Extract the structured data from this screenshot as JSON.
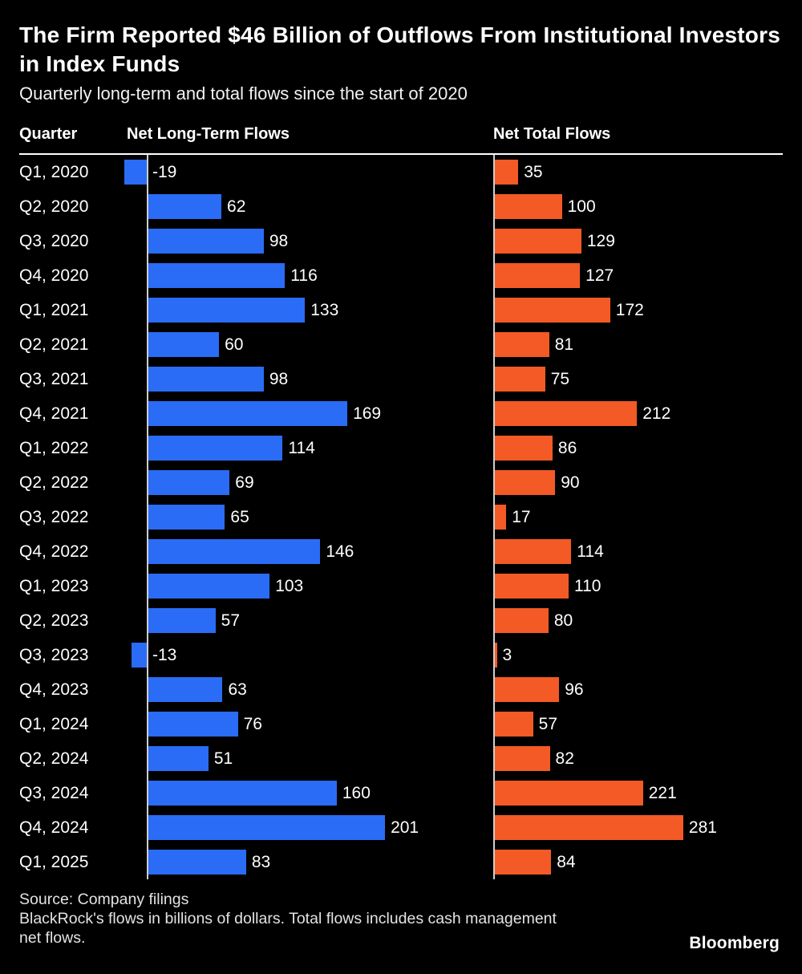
{
  "title": "The Firm Reported $46 Billion of Outflows From Institutional Investors in Index Funds",
  "subtitle": "Quarterly long-term and total flows since the start of 2020",
  "columns": {
    "quarter": "Quarter",
    "long_term": "Net Long-Term Flows",
    "total": "Net Total Flows"
  },
  "footer": {
    "source": "Source: Company filings",
    "note": "BlackRock's flows in billions of dollars. Total flows includes cash management net flows.",
    "brand": "Bloomberg"
  },
  "colors": {
    "background": "#000000",
    "long_term_bar": "#2a6cf5",
    "total_bar": "#f35a25",
    "text": "#ffffff",
    "axis_line": "#cfcfcf"
  },
  "chart_data": {
    "type": "bar",
    "orientation": "horizontal",
    "title": "The Firm Reported $46 Billion of Outflows From Institutional Investors in Index Funds",
    "subtitle": "Quarterly long-term and total flows since the start of 2020",
    "value_unit": "billions of dollars",
    "categories": [
      "Q1, 2020",
      "Q2, 2020",
      "Q3, 2020",
      "Q4, 2020",
      "Q1, 2021",
      "Q2, 2021",
      "Q3, 2021",
      "Q4, 2021",
      "Q1, 2022",
      "Q2, 2022",
      "Q3, 2022",
      "Q4, 2022",
      "Q1, 2023",
      "Q2, 2023",
      "Q3, 2023",
      "Q4, 2023",
      "Q1, 2024",
      "Q2, 2024",
      "Q3, 2024",
      "Q4, 2024",
      "Q1, 2025"
    ],
    "series": [
      {
        "name": "Net Long-Term Flows",
        "color": "#2a6cf5",
        "values": [
          -19,
          62,
          98,
          116,
          133,
          60,
          98,
          169,
          114,
          69,
          65,
          146,
          103,
          57,
          -13,
          63,
          76,
          51,
          160,
          201,
          83
        ]
      },
      {
        "name": "Net Total Flows",
        "color": "#f35a25",
        "values": [
          35,
          100,
          129,
          127,
          172,
          81,
          75,
          212,
          86,
          90,
          17,
          114,
          110,
          80,
          3,
          96,
          57,
          82,
          221,
          281,
          84
        ]
      }
    ],
    "xlim_long_term": [
      -19,
      201
    ],
    "xlim_total": [
      0,
      281
    ],
    "grid": false,
    "legend_position": "column-headers",
    "data_labels": true
  }
}
